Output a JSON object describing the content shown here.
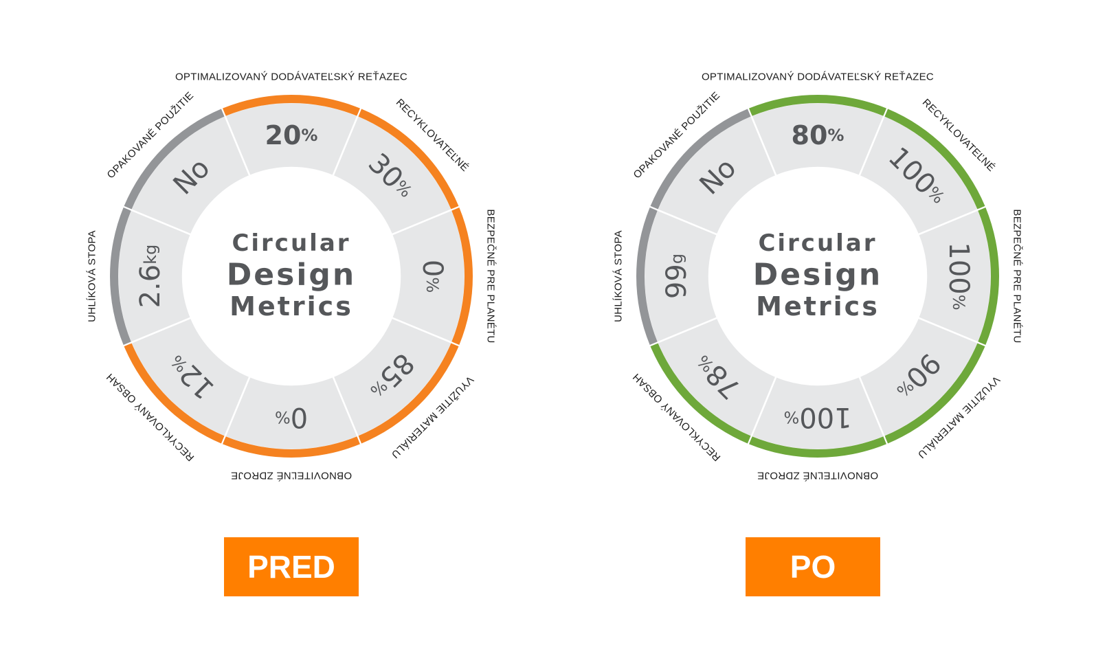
{
  "center_title": [
    "Circular",
    "Design",
    "Metrics"
  ],
  "colors": {
    "segment_fill": "#e6e7e8",
    "divider": "#ffffff",
    "ring_gray": "#939598",
    "ring_orange": "#f58220",
    "ring_green": "#6ea83a",
    "badge": "#ff7f00",
    "text_gray": "#55575a"
  },
  "segment_labels": [
    "OPTIMALIZOVANÝ DODÁVATEĽSKÝ REŤAZEC",
    "RECYKLOVATEĽNÉ",
    "BEZPEČNÉ PRE PLANÉTU",
    "VYUŽITIE MATERIÁLU",
    "OBNOVITEĽNÉ ZDROJE",
    "RECYKLOVANÝ OBSAH",
    "UHLÍKOVÁ STOPA",
    "OPAKOVANÉ POUŽITIE"
  ],
  "charts": [
    {
      "badge": "PRED",
      "ring_color": "orange",
      "segments": [
        {
          "value": "20",
          "unit": "%",
          "ring": "accent",
          "bold": true
        },
        {
          "value": "30",
          "unit": "%",
          "ring": "accent"
        },
        {
          "value": "0",
          "unit": "%",
          "ring": "accent"
        },
        {
          "value": "85",
          "unit": "%",
          "ring": "accent"
        },
        {
          "value": "0",
          "unit": "%",
          "ring": "accent"
        },
        {
          "value": "12",
          "unit": "%",
          "ring": "accent"
        },
        {
          "value": "2.6",
          "unit": "kg",
          "ring": "gray"
        },
        {
          "value": "No",
          "unit": "",
          "ring": "gray"
        }
      ]
    },
    {
      "badge": "PO",
      "ring_color": "green",
      "segments": [
        {
          "value": "80",
          "unit": "%",
          "ring": "accent",
          "bold": true
        },
        {
          "value": "100",
          "unit": "%",
          "ring": "accent"
        },
        {
          "value": "100",
          "unit": "%",
          "ring": "accent"
        },
        {
          "value": "90",
          "unit": "%",
          "ring": "accent"
        },
        {
          "value": "100",
          "unit": "%",
          "ring": "accent"
        },
        {
          "value": "78",
          "unit": "%",
          "ring": "accent"
        },
        {
          "value": "99",
          "unit": "g",
          "ring": "gray"
        },
        {
          "value": "No",
          "unit": "",
          "ring": "gray"
        }
      ]
    }
  ]
}
